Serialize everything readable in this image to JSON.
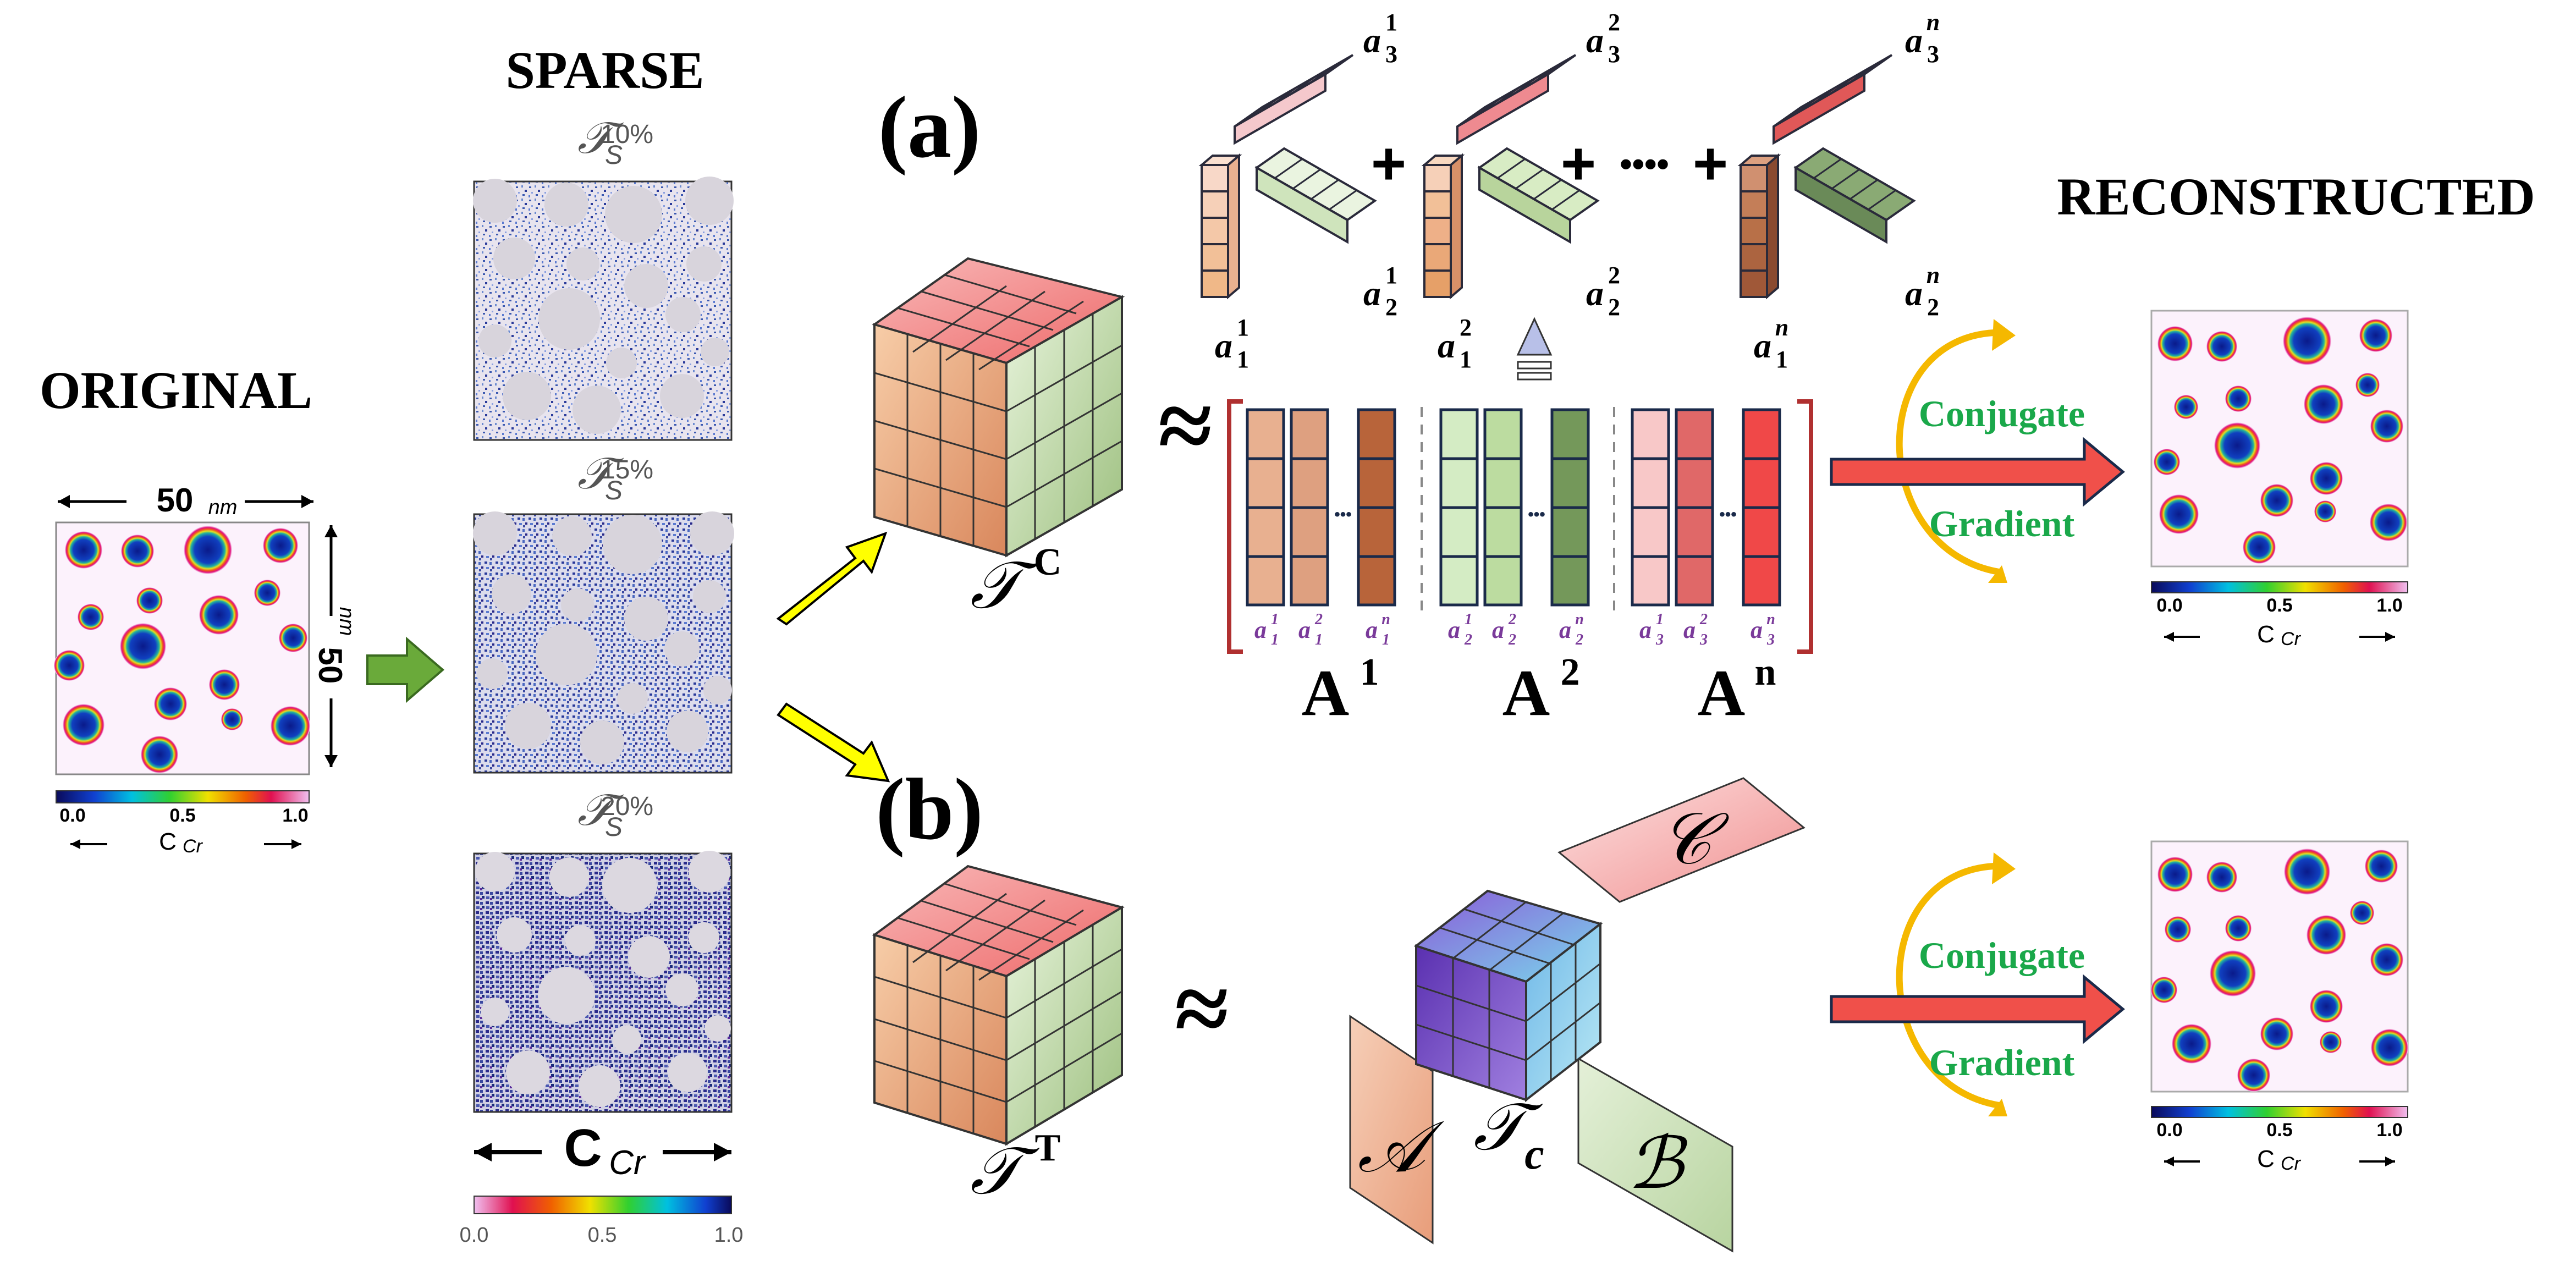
{
  "labels": {
    "original": "ORIGINAL",
    "sparse": "SPARSE",
    "reconstructed": "RECONSTRUCTED",
    "panel_a": "(a)",
    "panel_b": "(b)",
    "width_value": "50",
    "width_unit": "nm",
    "height_value": "50",
    "height_unit": "nm",
    "approx": "≈"
  },
  "original_colorbar": {
    "min": "0.0",
    "mid": "0.5",
    "max": "1.0",
    "label": "C",
    "sub": "Cr"
  },
  "sparse_colorbar": {
    "min": "0.0",
    "mid": "0.5",
    "max": "1.0",
    "label": "C",
    "sub": "Cr"
  },
  "recon_colorbar": {
    "min": "0.0",
    "mid": "0.5",
    "max": "1.0",
    "label": "C",
    "sub": "Cr"
  },
  "sparse_panels": [
    {
      "symbol": "𝒯",
      "sub": "S",
      "sup": "10%"
    },
    {
      "symbol": "𝒯",
      "sub": "S",
      "sup": "15%"
    },
    {
      "symbol": "𝒯",
      "sub": "S",
      "sup": "20%"
    }
  ],
  "tensor_cp": {
    "symbol": "𝒯",
    "sup": "C"
  },
  "tensor_tucker": {
    "symbol": "𝒯",
    "sup": "T"
  },
  "rank_one_terms": [
    {
      "a1": "a",
      "a1_sup": "1",
      "a1_sub": "1",
      "a2_sup": "1",
      "a2_sub": "2",
      "a3_sup": "1",
      "a3_sub": "3"
    },
    {
      "a1": "a",
      "a1_sup": "2",
      "a1_sub": "1",
      "a2_sup": "2",
      "a2_sub": "2",
      "a3_sup": "2",
      "a3_sub": "3"
    },
    {
      "a1": "a",
      "a1_sup": "n",
      "a1_sub": "1",
      "a2_sup": "n",
      "a2_sub": "2",
      "a3_sup": "n",
      "a3_sub": "3"
    }
  ],
  "factor_matrices": [
    {
      "name": "A",
      "sup": "1",
      "cols": [
        {
          "sup": "1",
          "sub": "1"
        },
        {
          "sup": "2",
          "sub": "1"
        },
        {
          "sup": "n",
          "sub": "1"
        }
      ]
    },
    {
      "name": "A",
      "sup": "2",
      "cols": [
        {
          "sup": "1",
          "sub": "2"
        },
        {
          "sup": "2",
          "sub": "2"
        },
        {
          "sup": "n",
          "sub": "2"
        }
      ]
    },
    {
      "name": "A",
      "sup": "n",
      "cols": [
        {
          "sup": "1",
          "sub": "3"
        },
        {
          "sup": "2",
          "sub": "3"
        },
        {
          "sup": "n",
          "sub": "3"
        }
      ]
    }
  ],
  "plus_signs": [
    "+",
    "+",
    "+"
  ],
  "dots": "••••",
  "ellipsis": "•••",
  "solver": {
    "line1": "Conjugate",
    "line2": "Gradient"
  },
  "tucker": {
    "core_symbol": "𝒯",
    "core_sub": "c",
    "factor_a": "𝒜",
    "factor_b": "ℬ",
    "factor_c": "𝒞"
  },
  "colors": {
    "green_arrow": "#6aaa3a",
    "yellow_arrow": "#ffff00",
    "red_arrow": "#f0504a",
    "loop": "#f5b800",
    "solver_text": "#1aa84a",
    "purple_label": "#7a3a9a",
    "bracket": "#b03030",
    "orange_face": "#e8a07a",
    "green_face": "#c2dfaa",
    "red_face": "#f07070"
  }
}
